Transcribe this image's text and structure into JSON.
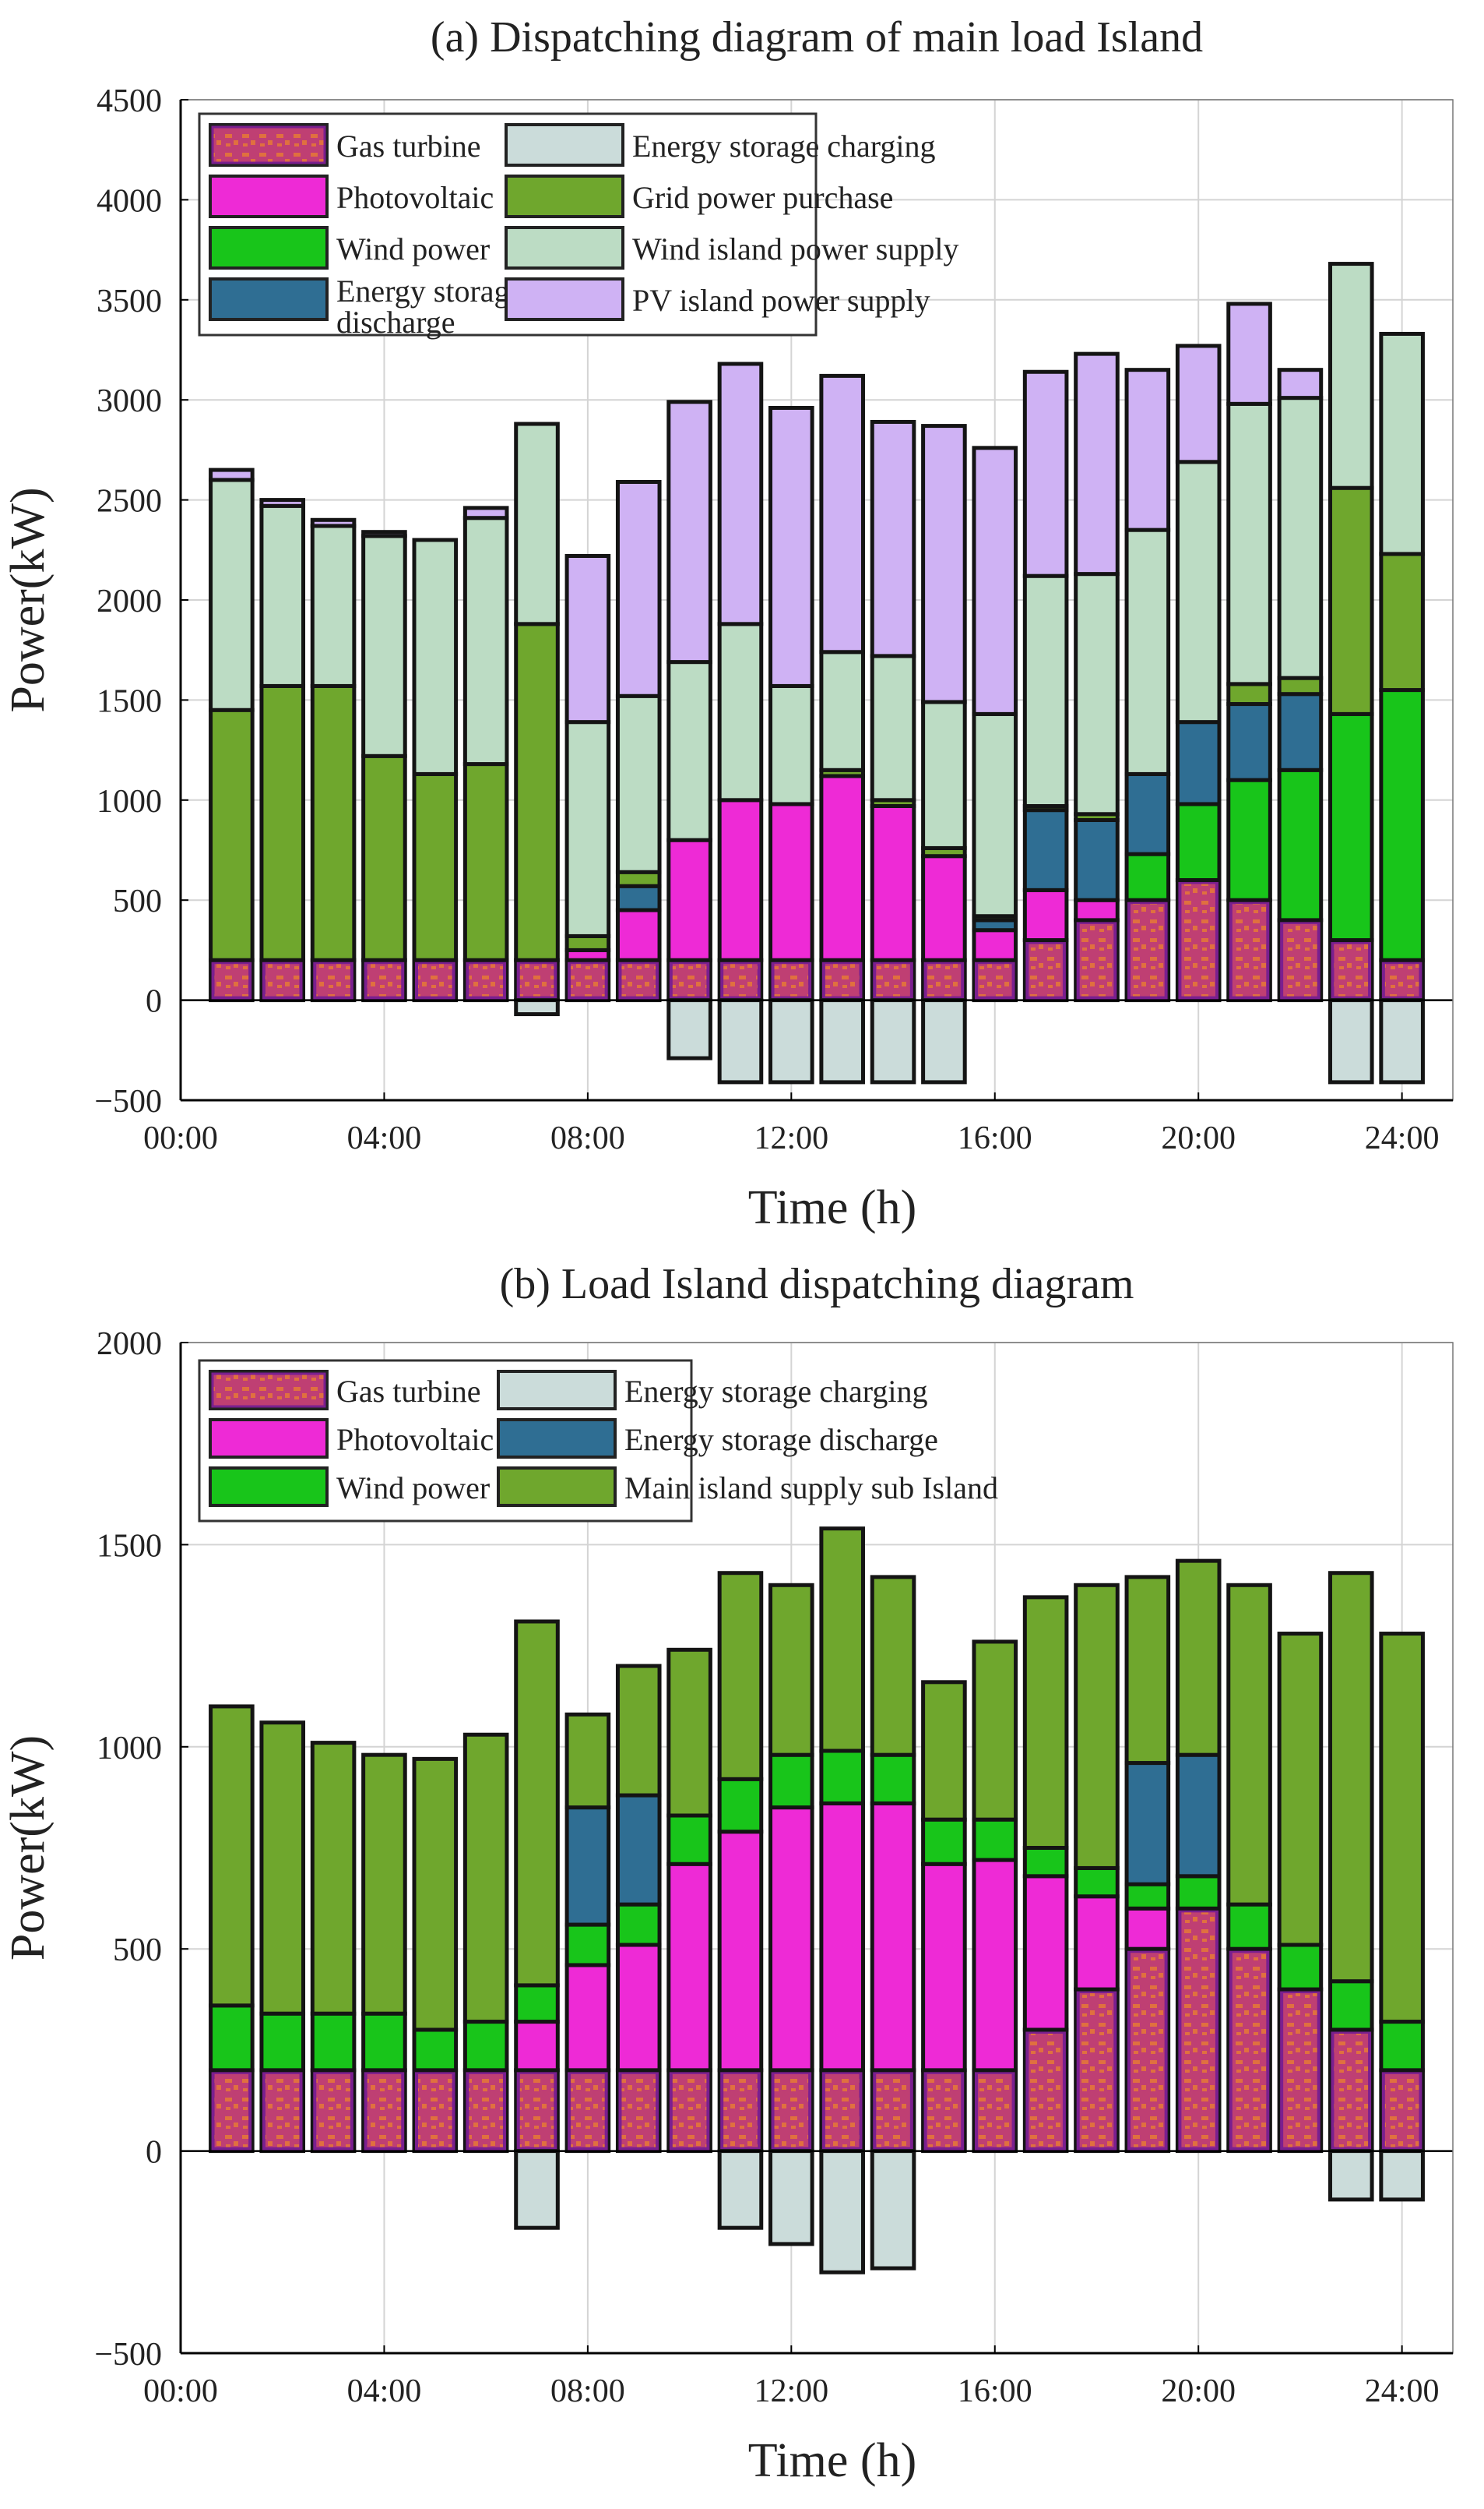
{
  "figure": {
    "panel_a_title": "(a) Dispatching diagram of main load Island",
    "panel_b_title": "(b) Load Island dispatching diagram"
  },
  "colors": {
    "gas_fill": "#bf3f73",
    "gas_pattern": "#e0703f",
    "gas_edge": "#7a1f8f",
    "pv": "#ee2ad6",
    "wind": "#18c51a",
    "es_charge": "#cbdcda",
    "es_discharge": "#2f6e93",
    "grid": "#6fa72d",
    "wind_island": "#bcdcc4",
    "pv_island": "#cfb2f4",
    "main_supply": "#6fa72d",
    "bar_edge": "#141414",
    "grid_line": "#d4d4d4"
  },
  "chart_data": [
    {
      "type": "bar",
      "stacked": true,
      "title": "(a) Dispatching diagram of main load Island",
      "xlabel": "Time (h)",
      "ylabel": "Power(kW)",
      "ylim": [
        -500,
        4500
      ],
      "yticks": [
        -500,
        0,
        500,
        1000,
        1500,
        2000,
        2500,
        3000,
        3500,
        4000,
        4500
      ],
      "xlim": [
        0,
        25
      ],
      "xticks": [
        0,
        4,
        8,
        12,
        16,
        20,
        24
      ],
      "xtick_labels": [
        "00:00",
        "04:00",
        "08:00",
        "12:00",
        "16:00",
        "20:00",
        "24:00"
      ],
      "hours": [
        1,
        2,
        3,
        4,
        5,
        6,
        7,
        8,
        9,
        10,
        11,
        12,
        13,
        14,
        15,
        16,
        17,
        18,
        19,
        20,
        21,
        22,
        23,
        24
      ],
      "legend": [
        [
          "Gas turbine",
          "Energy storage charging"
        ],
        [
          "Photovoltaic",
          "Grid power purchase"
        ],
        [
          "Wind power",
          "Wind island power supply"
        ],
        [
          "Energy storage discharge",
          "PV island power supply"
        ]
      ],
      "series": [
        {
          "name": "Gas turbine",
          "key": "gas",
          "values": [
            200,
            200,
            200,
            200,
            200,
            200,
            200,
            200,
            200,
            200,
            200,
            200,
            200,
            200,
            200,
            200,
            300,
            400,
            500,
            600,
            500,
            400,
            300,
            200
          ]
        },
        {
          "name": "Photovoltaic",
          "key": "pv",
          "values": [
            0,
            0,
            0,
            0,
            0,
            0,
            0,
            50,
            250,
            600,
            800,
            780,
            920,
            770,
            520,
            150,
            250,
            100,
            0,
            0,
            0,
            0,
            0,
            0
          ]
        },
        {
          "name": "Wind power",
          "key": "wind",
          "values": [
            0,
            0,
            0,
            0,
            0,
            0,
            0,
            0,
            0,
            0,
            0,
            0,
            0,
            0,
            0,
            0,
            0,
            0,
            230,
            380,
            600,
            750,
            1130,
            1350
          ]
        },
        {
          "name": "Energy storage discharge",
          "key": "es_discharge",
          "values": [
            0,
            0,
            0,
            0,
            0,
            0,
            0,
            0,
            120,
            0,
            0,
            0,
            0,
            0,
            0,
            50,
            400,
            400,
            400,
            410,
            380,
            380,
            0,
            0
          ]
        },
        {
          "name": "Grid power purchase",
          "key": "grid",
          "values": [
            1250,
            1370,
            1370,
            1020,
            930,
            980,
            1680,
            70,
            70,
            0,
            0,
            0,
            30,
            30,
            40,
            20,
            20,
            30,
            0,
            0,
            100,
            80,
            1130,
            680
          ]
        },
        {
          "name": "Wind island power supply",
          "key": "wind_island",
          "values": [
            1150,
            900,
            800,
            1100,
            1170,
            1230,
            1000,
            1070,
            880,
            890,
            880,
            590,
            590,
            720,
            730,
            1010,
            1150,
            1200,
            1220,
            1300,
            1400,
            1400,
            1120,
            1100
          ]
        },
        {
          "name": "PV island power supply",
          "key": "pv_island",
          "values": [
            50,
            30,
            30,
            20,
            0,
            50,
            0,
            830,
            1070,
            1300,
            1300,
            1390,
            1380,
            1170,
            1380,
            1330,
            1020,
            1100,
            800,
            580,
            500,
            140,
            0,
            0
          ]
        },
        {
          "name": "Energy storage charging",
          "key": "es_charge",
          "values": [
            0,
            0,
            0,
            0,
            0,
            0,
            -70,
            0,
            0,
            -290,
            -410,
            -410,
            -410,
            -410,
            -410,
            0,
            0,
            0,
            0,
            0,
            0,
            0,
            -410,
            -410
          ]
        }
      ]
    },
    {
      "type": "bar",
      "stacked": true,
      "title": "(b) Load Island dispatching diagram",
      "xlabel": "Time (h)",
      "ylabel": "Power(kW)",
      "ylim": [
        -500,
        2000
      ],
      "yticks": [
        -500,
        0,
        500,
        1000,
        1500,
        2000
      ],
      "xlim": [
        0,
        25
      ],
      "xticks": [
        0,
        4,
        8,
        12,
        16,
        20,
        24
      ],
      "xtick_labels": [
        "00:00",
        "04:00",
        "08:00",
        "12:00",
        "16:00",
        "20:00",
        "24:00"
      ],
      "hours": [
        1,
        2,
        3,
        4,
        5,
        6,
        7,
        8,
        9,
        10,
        11,
        12,
        13,
        14,
        15,
        16,
        17,
        18,
        19,
        20,
        21,
        22,
        23,
        24
      ],
      "legend": [
        [
          "Gas turbine",
          "Energy storage charging"
        ],
        [
          "Photovoltaic",
          "Energy storage discharge"
        ],
        [
          "Wind power",
          "Main island supply sub Island"
        ]
      ],
      "series": [
        {
          "name": "Gas turbine",
          "key": "gas",
          "values": [
            200,
            200,
            200,
            200,
            200,
            200,
            200,
            200,
            200,
            200,
            200,
            200,
            200,
            200,
            200,
            200,
            300,
            400,
            500,
            600,
            500,
            400,
            300,
            200
          ]
        },
        {
          "name": "Photovoltaic",
          "key": "pv",
          "values": [
            0,
            0,
            0,
            0,
            0,
            0,
            120,
            260,
            310,
            510,
            590,
            650,
            660,
            660,
            510,
            520,
            380,
            230,
            100,
            0,
            0,
            0,
            0,
            0
          ]
        },
        {
          "name": "Wind power",
          "key": "wind",
          "values": [
            160,
            140,
            140,
            140,
            100,
            120,
            90,
            100,
            100,
            120,
            130,
            130,
            130,
            120,
            110,
            100,
            70,
            70,
            60,
            80,
            110,
            110,
            120,
            120
          ]
        },
        {
          "name": "Energy storage discharge",
          "key": "es_discharge",
          "values": [
            0,
            0,
            0,
            0,
            0,
            0,
            0,
            290,
            270,
            0,
            0,
            0,
            0,
            0,
            0,
            0,
            0,
            0,
            300,
            300,
            0,
            0,
            0,
            0
          ]
        },
        {
          "name": "Main island supply sub Island",
          "key": "main_supply",
          "values": [
            740,
            720,
            670,
            640,
            670,
            710,
            900,
            230,
            320,
            410,
            510,
            420,
            550,
            440,
            340,
            440,
            620,
            700,
            460,
            480,
            790,
            770,
            1010,
            960
          ]
        },
        {
          "name": "Energy storage charging",
          "key": "es_charge",
          "values": [
            0,
            0,
            0,
            0,
            0,
            0,
            -190,
            0,
            0,
            0,
            -190,
            -230,
            -300,
            -290,
            0,
            0,
            0,
            0,
            0,
            0,
            0,
            0,
            -120,
            -120
          ]
        }
      ]
    }
  ]
}
